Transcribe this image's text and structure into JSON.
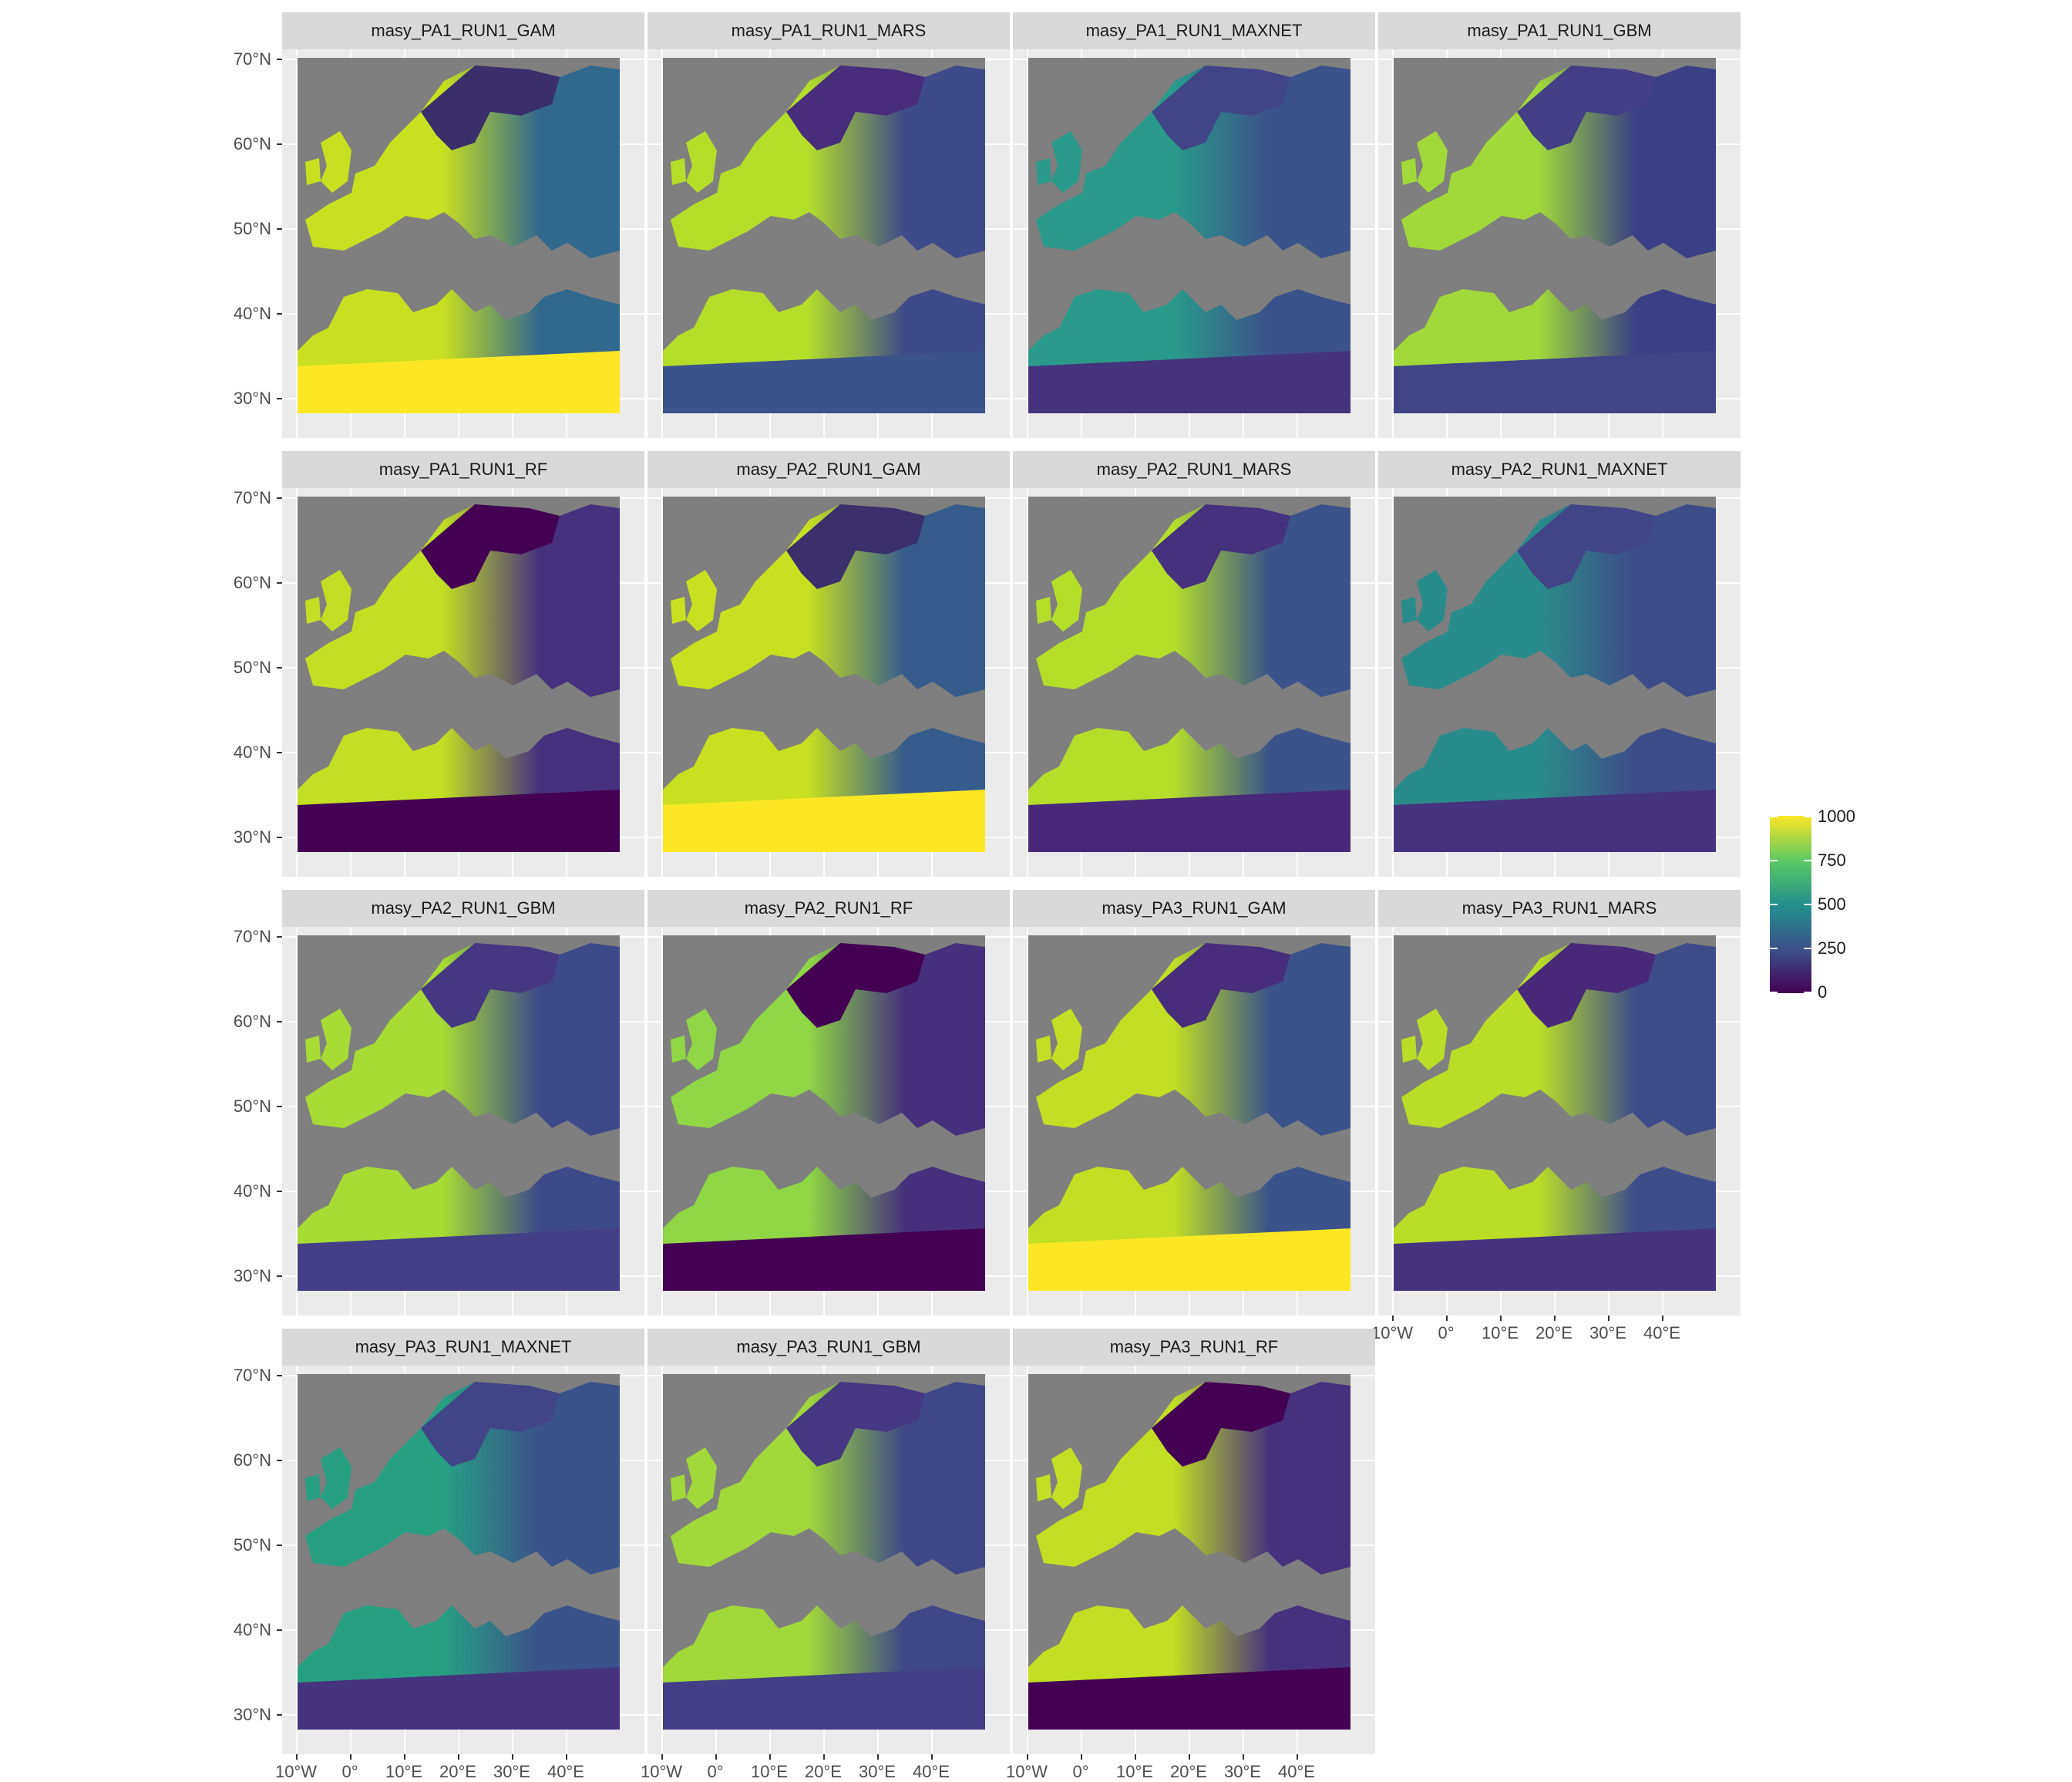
{
  "figure": {
    "facets": [
      {
        "title": "masy_PA1_RUN1_GAM",
        "palette": {
          "south": "#fde725",
          "west": "#c8e020",
          "east": "#31688e",
          "north": "#3a2f6b"
        }
      },
      {
        "title": "masy_PA1_RUN1_MARS",
        "palette": {
          "south": "#3b528b",
          "west": "#b5de2b",
          "east": "#3f4a8a",
          "north": "#472d7b"
        }
      },
      {
        "title": "masy_PA1_RUN1_MAXNET",
        "palette": {
          "south": "#46337e",
          "west": "#2a9a8a",
          "east": "#3b528b",
          "north": "#414487"
        }
      },
      {
        "title": "masy_PA1_RUN1_GBM",
        "palette": {
          "south": "#414487",
          "west": "#a2d83a",
          "east": "#3b3f85",
          "north": "#433e85"
        }
      },
      {
        "title": "masy_PA1_RUN1_RF",
        "palette": {
          "south": "#440154",
          "west": "#c2df23",
          "east": "#46317e",
          "north": "#440154"
        }
      },
      {
        "title": "masy_PA2_RUN1_GAM",
        "palette": {
          "south": "#fde725",
          "west": "#c8e020",
          "east": "#365c8d",
          "north": "#3b2f6c"
        }
      },
      {
        "title": "masy_PA2_RUN1_MARS",
        "palette": {
          "south": "#482979",
          "west": "#b5de2b",
          "east": "#3b528b",
          "north": "#46317e"
        }
      },
      {
        "title": "masy_PA2_RUN1_MAXNET",
        "palette": {
          "south": "#46337e",
          "west": "#2a8c8a",
          "east": "#3e4c8a",
          "north": "#414487"
        }
      },
      {
        "title": "masy_PA2_RUN1_GBM",
        "palette": {
          "south": "#433e85",
          "west": "#a8db34",
          "east": "#3e4989",
          "north": "#453781"
        }
      },
      {
        "title": "masy_PA2_RUN1_RF",
        "palette": {
          "south": "#440154",
          "west": "#8fd744",
          "east": "#46307e",
          "north": "#440154"
        }
      },
      {
        "title": "masy_PA3_RUN1_GAM",
        "palette": {
          "south": "#fde725",
          "west": "#c2df23",
          "east": "#3b528b",
          "north": "#472d7b"
        }
      },
      {
        "title": "masy_PA3_RUN1_MARS",
        "palette": {
          "south": "#46337e",
          "west": "#bade28",
          "east": "#3e4c8a",
          "north": "#482979"
        }
      },
      {
        "title": "masy_PA3_RUN1_MAXNET",
        "palette": {
          "south": "#46337e",
          "west": "#27a082",
          "east": "#3b528b",
          "north": "#414487"
        }
      },
      {
        "title": "masy_PA3_RUN1_GBM",
        "palette": {
          "south": "#433e85",
          "west": "#a2d83a",
          "east": "#3f4788",
          "north": "#453781"
        }
      },
      {
        "title": "masy_PA3_RUN1_RF",
        "palette": {
          "south": "#440154",
          "west": "#c2df23",
          "east": "#46317e",
          "north": "#440154"
        }
      }
    ],
    "y_ticks": [
      "70°N",
      "60°N",
      "50°N",
      "40°N",
      "30°N"
    ],
    "x_ticks": [
      "10°W",
      "0°",
      "10°E",
      "20°E",
      "30°E",
      "40°E"
    ],
    "nodata_color": "#7f7f7f",
    "panel_background": "#ebebeb",
    "strip_background": "#d9d9d9"
  },
  "legend": {
    "labels": [
      "1000",
      "750",
      "500",
      "250",
      "0"
    ],
    "colors": [
      "#fde725",
      "#5ec962",
      "#21918c",
      "#3b528b",
      "#440154"
    ]
  }
}
